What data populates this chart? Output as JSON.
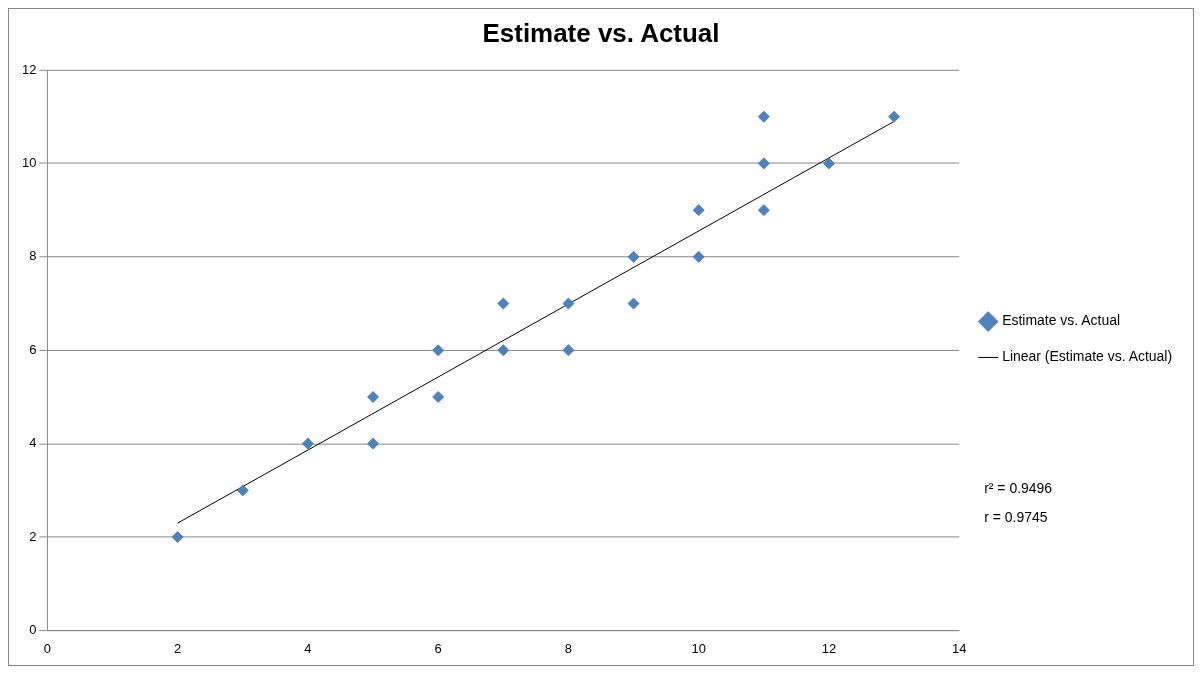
{
  "chart_data": {
    "type": "scatter",
    "title": "Estimate vs. Actual",
    "xlim": [
      0,
      14
    ],
    "xticks": [
      0,
      2,
      4,
      6,
      8,
      10,
      12,
      14
    ],
    "ylim": [
      0,
      12
    ],
    "yticks": [
      0,
      2,
      4,
      6,
      8,
      10,
      12
    ],
    "grid": "y",
    "legend": "right",
    "marker": "diamond",
    "series": [
      {
        "name": "Estimate vs. Actual",
        "type": "scatter",
        "color": "#4f81bd",
        "x": [
          2,
          3,
          4,
          5,
          5,
          6,
          6,
          7,
          7,
          8,
          8,
          9,
          9,
          10,
          10,
          11,
          11,
          11,
          12,
          13
        ],
        "values": [
          2,
          3,
          4,
          5,
          4,
          6,
          5,
          7,
          6,
          7,
          6,
          8,
          7,
          9,
          8,
          11,
          10,
          9,
          10,
          11
        ]
      },
      {
        "name": "Linear (Estimate vs. Actual)",
        "type": "line",
        "color": "#000000",
        "marker": "none",
        "line_style": "solid",
        "x": [
          2,
          13
        ],
        "values": [
          2.3,
          10.9
        ]
      }
    ],
    "annotations": [
      "r² = 0.9496",
      "r = 0.9745"
    ]
  }
}
